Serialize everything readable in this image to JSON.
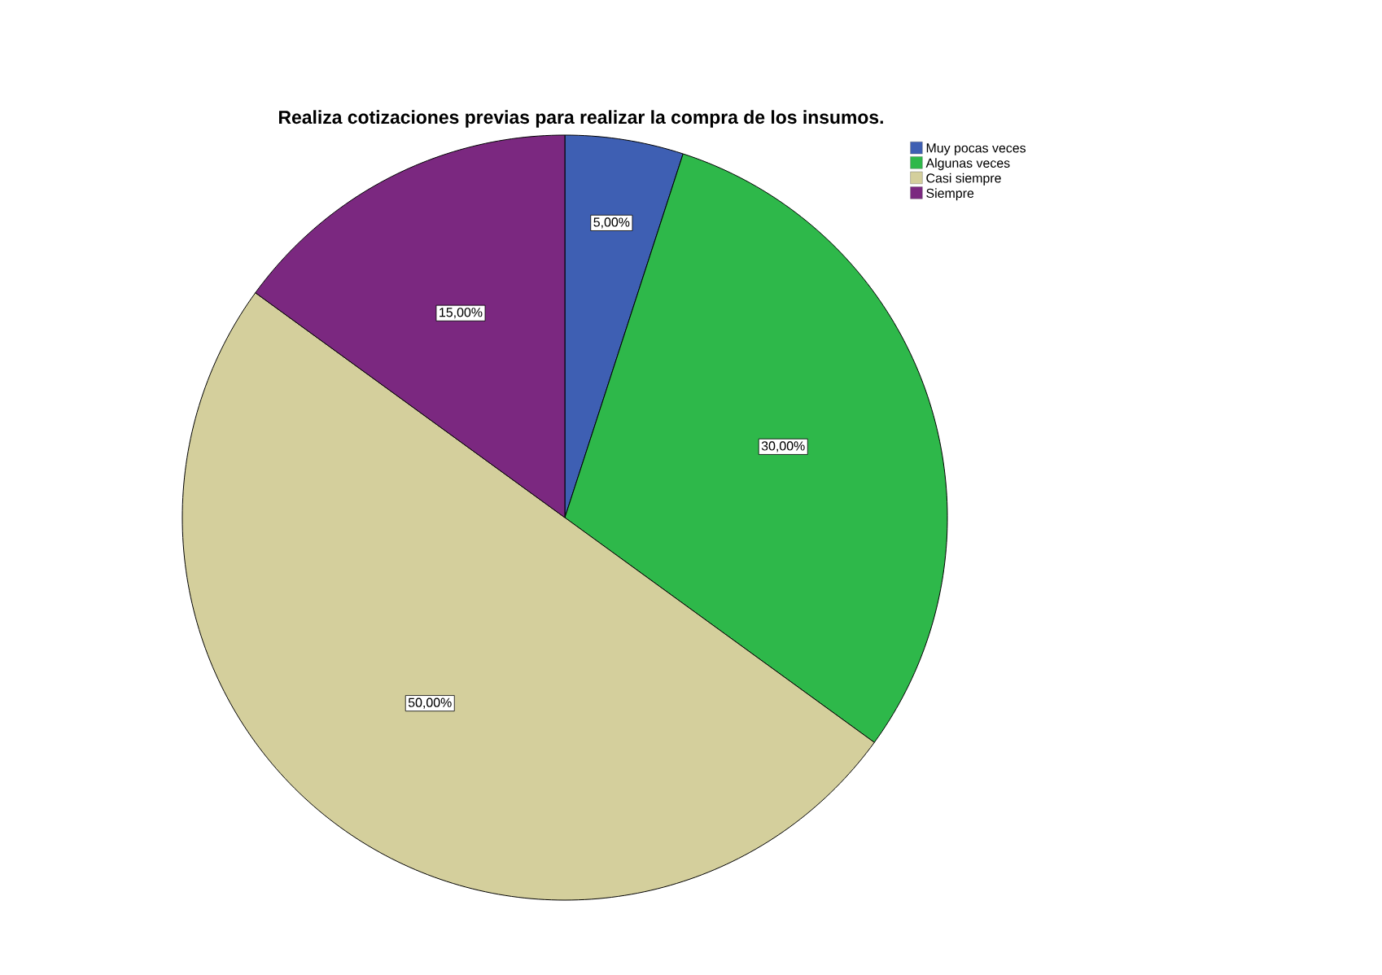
{
  "chart_data": {
    "type": "pie",
    "title": "Realiza cotizaciones previas para realizar la compra de los insumos.",
    "categories": [
      "Muy pocas veces",
      "Algunas veces",
      "Casi siempre",
      "Siempre"
    ],
    "values": [
      5,
      30,
      50,
      15
    ],
    "value_labels": [
      "5,00%",
      "30,00%",
      "50,00%",
      "15,00%"
    ],
    "colors": [
      "#3e5fb3",
      "#2eb84a",
      "#d4cf9c",
      "#7b2880"
    ],
    "legend": "top right"
  }
}
